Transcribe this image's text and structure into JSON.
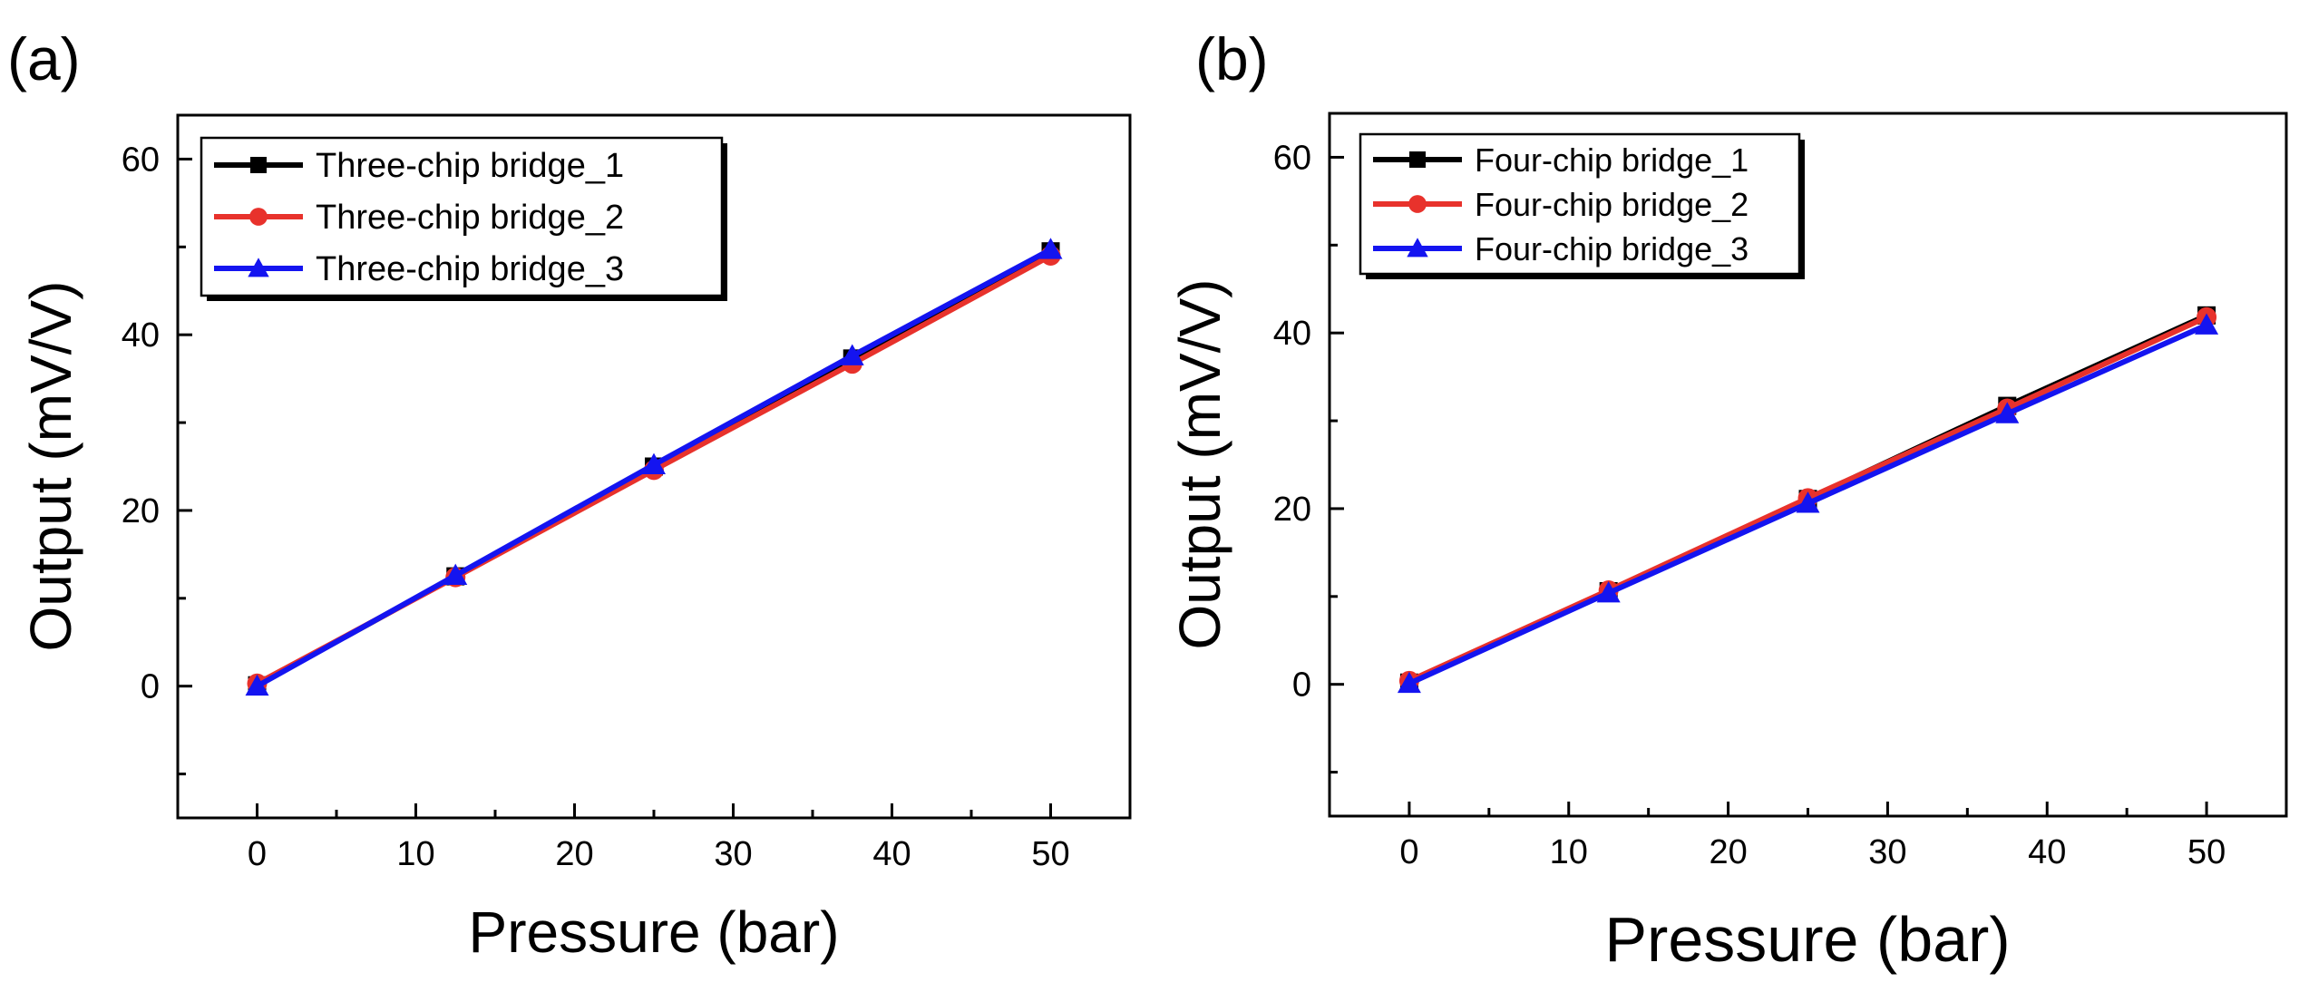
{
  "chart_data": [
    {
      "panel_label": "(a)",
      "type": "line",
      "xlabel": "Pressure (bar)",
      "ylabel": "Output (mV/V)",
      "xlim": [
        -5,
        55
      ],
      "ylim": [
        -15,
        65
      ],
      "xticks": [
        0,
        10,
        20,
        30,
        40,
        50
      ],
      "yticks": [
        0,
        20,
        40,
        60
      ],
      "x": [
        0,
        12.5,
        25,
        37.5,
        50
      ],
      "legend_position": "top-left",
      "series": [
        {
          "name": "Three-chip bridge_1",
          "color": "#000000",
          "marker": "square",
          "values": [
            0.1,
            12.5,
            25.0,
            37.3,
            49.5
          ]
        },
        {
          "name": "Three-chip bridge_2",
          "color": "#e8322c",
          "marker": "circle",
          "values": [
            0.3,
            12.4,
            24.6,
            36.7,
            49.0
          ]
        },
        {
          "name": "Three-chip bridge_3",
          "color": "#1414f0",
          "marker": "triangle",
          "values": [
            0.0,
            12.6,
            25.2,
            37.6,
            49.7
          ]
        }
      ]
    },
    {
      "panel_label": "(b)",
      "type": "line",
      "xlabel": "Pressure (bar)",
      "ylabel": "Output (mV/V)",
      "xlim": [
        -5,
        55
      ],
      "ylim": [
        -15,
        65
      ],
      "xticks": [
        0,
        10,
        20,
        30,
        40,
        50
      ],
      "yticks": [
        0,
        20,
        40,
        60
      ],
      "x": [
        0,
        12.5,
        25,
        37.5,
        50
      ],
      "legend_position": "top-left",
      "series": [
        {
          "name": "Four-chip bridge_1",
          "color": "#000000",
          "marker": "square",
          "values": [
            0.2,
            10.6,
            21.1,
            31.7,
            42.0
          ]
        },
        {
          "name": "Four-chip bridge_2",
          "color": "#e8322c",
          "marker": "circle",
          "values": [
            0.4,
            10.7,
            21.2,
            31.4,
            41.8
          ]
        },
        {
          "name": "Four-chip bridge_3",
          "color": "#1414f0",
          "marker": "triangle",
          "values": [
            0.1,
            10.4,
            20.6,
            30.8,
            40.9
          ]
        }
      ]
    }
  ]
}
